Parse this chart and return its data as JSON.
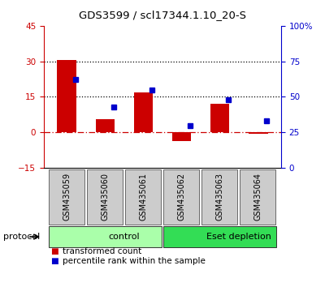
{
  "title": "GDS3599 / scl17344.1.10_20-S",
  "categories": [
    "GSM435059",
    "GSM435060",
    "GSM435061",
    "GSM435062",
    "GSM435063",
    "GSM435064"
  ],
  "red_values": [
    30.5,
    5.5,
    17.0,
    -3.5,
    12.0,
    -0.5
  ],
  "blue_values_pct": [
    62,
    43,
    55,
    30,
    48,
    33
  ],
  "red_ylim": [
    -15,
    45
  ],
  "blue_ylim": [
    0,
    100
  ],
  "red_yticks": [
    -15,
    0,
    15,
    30,
    45
  ],
  "blue_yticks": [
    0,
    25,
    50,
    75,
    100
  ],
  "blue_yticklabels": [
    "0",
    "25",
    "50",
    "75",
    "100%"
  ],
  "red_color": "#cc0000",
  "blue_color": "#0000cc",
  "hline_y": [
    15,
    30
  ],
  "zero_line_color": "#cc0000",
  "protocol_groups": [
    {
      "label": "control",
      "start": 0,
      "end": 3,
      "color": "#aaffaa"
    },
    {
      "label": "Eset depletion",
      "start": 3,
      "end": 6,
      "color": "#33dd55"
    }
  ],
  "legend_items": [
    {
      "color": "#cc0000",
      "label": "transformed count"
    },
    {
      "color": "#0000cc",
      "label": "percentile rank within the sample"
    }
  ],
  "protocol_label": "protocol",
  "bar_width": 0.5
}
